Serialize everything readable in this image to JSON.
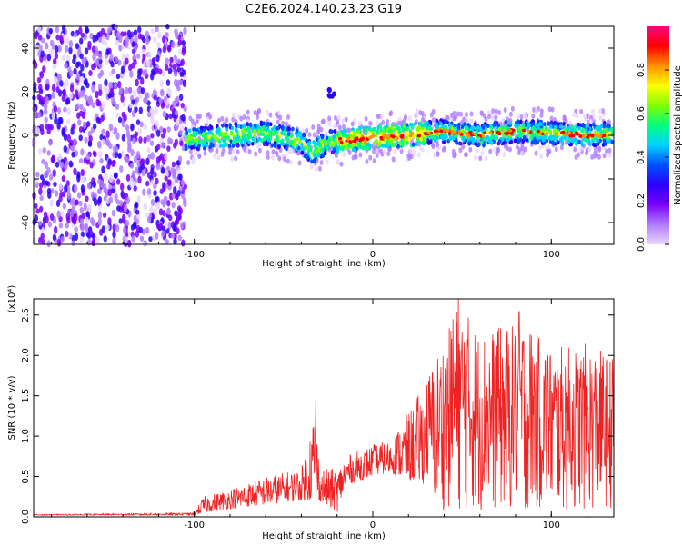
{
  "title": "C2E6.2024.140.23.23.G19",
  "chart_data": [
    {
      "type": "heatmap",
      "xlabel": "Height of straight line (km)",
      "ylabel": "Frequency (Hz)",
      "xlim": [
        -190,
        135
      ],
      "ylim": [
        -50,
        50
      ],
      "x_ticks": [
        -100,
        0,
        100
      ],
      "y_ticks": [
        -40,
        -20,
        0,
        20,
        40
      ],
      "colorbar": {
        "label": "Normalized spectral amplitude",
        "range": [
          0,
          1
        ],
        "ticks": [
          "0.0",
          "0.2",
          "0.4",
          "0.6",
          "0.8"
        ],
        "colors": [
          "#e8d6ff",
          "#b07cff",
          "#7a00ff",
          "#2a00ff",
          "#0050ff",
          "#00d0ff",
          "#00ff80",
          "#80ff00",
          "#ffff00",
          "#ff9000",
          "#ff0000",
          "#ff0080"
        ]
      },
      "features": {
        "noise_region_x": [
          -190,
          -105
        ],
        "signal_band_x": [
          -105,
          135
        ],
        "signal_band_center_hz": [
          [
            -105,
            -2
          ],
          [
            -80,
            0
          ],
          [
            -60,
            1
          ],
          [
            -40,
            -3
          ],
          [
            -35,
            -8
          ],
          [
            -25,
            -3
          ],
          [
            0,
            -1
          ],
          [
            20,
            0
          ],
          [
            40,
            2
          ],
          [
            60,
            0
          ],
          [
            80,
            2
          ],
          [
            100,
            1
          ],
          [
            120,
            0
          ],
          [
            135,
            1
          ]
        ],
        "isolated_blob": {
          "x": -23,
          "y": 20
        }
      }
    },
    {
      "type": "line",
      "xlabel": "Height of straight line (km)",
      "ylabel": "SNR (10 * v/v)",
      "multiplier": "(x10⁴)",
      "xlim": [
        -190,
        135
      ],
      "ylim": [
        0,
        2.7
      ],
      "x_ticks": [
        -100,
        0,
        100
      ],
      "y_ticks": [
        "0.0",
        "0.5",
        "1.0",
        "1.5",
        "2.0",
        "2.5"
      ],
      "color": "#ee2222",
      "envelope": [
        [
          -190,
          0.02,
          0.03
        ],
        [
          -100,
          0.02,
          0.05
        ],
        [
          -95,
          0.05,
          0.25
        ],
        [
          -80,
          0.1,
          0.35
        ],
        [
          -60,
          0.15,
          0.5
        ],
        [
          -40,
          0.2,
          0.6
        ],
        [
          -32,
          0.2,
          1.45
        ],
        [
          -30,
          0.2,
          0.6
        ],
        [
          -20,
          0.05,
          0.6
        ],
        [
          -15,
          0.4,
          0.75
        ],
        [
          0,
          0.5,
          0.9
        ],
        [
          10,
          0.55,
          0.95
        ],
        [
          20,
          0.45,
          1.3
        ],
        [
          30,
          0.4,
          1.7
        ],
        [
          35,
          0.1,
          2.0
        ],
        [
          45,
          0.05,
          2.45
        ],
        [
          48,
          0.05,
          2.7
        ],
        [
          60,
          0.05,
          2.3
        ],
        [
          80,
          0.05,
          2.4
        ],
        [
          82,
          0.05,
          2.55
        ],
        [
          100,
          0.05,
          2.1
        ],
        [
          120,
          0.05,
          2.15
        ],
        [
          135,
          0.1,
          2.0
        ]
      ],
      "spikes": [
        [
          -32,
          1.45
        ],
        [
          48,
          2.7
        ],
        [
          45,
          2.45
        ],
        [
          70,
          2.3
        ],
        [
          82,
          2.55
        ],
        [
          120,
          2.15
        ],
        [
          98,
          2.0
        ]
      ]
    }
  ]
}
